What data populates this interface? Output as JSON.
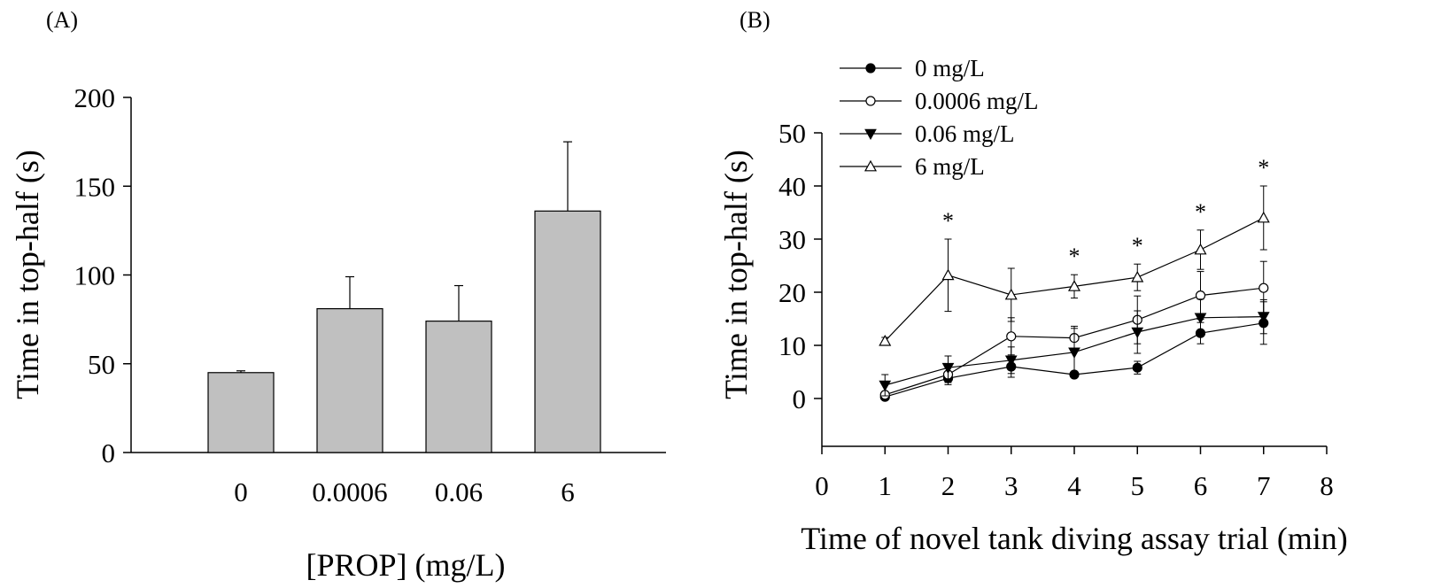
{
  "chart_data": [
    {
      "type": "bar",
      "panel_label": "(A)",
      "title": "",
      "xlabel": "[PROP] (mg/L)",
      "ylabel": "Time in top-half (s)",
      "categories": [
        "0",
        "0.0006",
        "0.06",
        "6"
      ],
      "values": [
        45,
        81,
        74,
        136
      ],
      "errors": [
        1,
        18,
        20,
        39
      ],
      "ylim": [
        0,
        200
      ],
      "yticks": [
        0,
        50,
        100,
        150,
        200
      ],
      "bar_color": "#c0c0c0",
      "grid": false
    },
    {
      "type": "line",
      "panel_label": "(B)",
      "title": "",
      "xlabel": "Time of novel tank diving assay trial (min)",
      "ylabel": "Time in top-half (s)",
      "xlim": [
        0,
        8
      ],
      "ylim": [
        -9,
        50
      ],
      "xticks": [
        0,
        1,
        2,
        3,
        4,
        5,
        6,
        7,
        8
      ],
      "yticks": [
        0,
        10,
        20,
        30,
        40,
        50
      ],
      "x": [
        1,
        2,
        3,
        4,
        5,
        6,
        7
      ],
      "legend_position": "top-left",
      "grid": false,
      "series": [
        {
          "name": "0 mg/L",
          "marker": "circle-filled",
          "values": [
            0.3,
            3.8,
            6,
            4.5,
            5.8,
            12.3,
            14.2
          ],
          "errors": [
            0.4,
            1.2,
            2,
            0.5,
            1.2,
            2,
            4
          ]
        },
        {
          "name": "0.0006 mg/L",
          "marker": "circle-open",
          "values": [
            0.7,
            4.5,
            11.7,
            11.4,
            14.8,
            19.4,
            20.8
          ],
          "errors": [
            0.5,
            1.5,
            3.5,
            2.2,
            4.5,
            4.5,
            5
          ]
        },
        {
          "name": "0.06 mg/L",
          "marker": "triangle-down-filled",
          "values": [
            2.5,
            5.8,
            7.2,
            8.7,
            12.5,
            15.2,
            15.4
          ],
          "errors": [
            2,
            2.2,
            2.5,
            4.5,
            4,
            3.5,
            3.2
          ]
        },
        {
          "name": "6 mg/L",
          "marker": "triangle-up-open",
          "values": [
            10.8,
            23.2,
            19.5,
            21.1,
            22.8,
            28,
            34
          ],
          "errors": [
            0.7,
            6.8,
            5,
            2.2,
            2.5,
            3.7,
            6
          ]
        }
      ],
      "significance": [
        {
          "x": 2,
          "label": "*"
        },
        {
          "x": 4,
          "label": "*"
        },
        {
          "x": 5,
          "label": "*"
        },
        {
          "x": 6,
          "label": "*"
        },
        {
          "x": 7,
          "label": "*"
        }
      ]
    }
  ]
}
